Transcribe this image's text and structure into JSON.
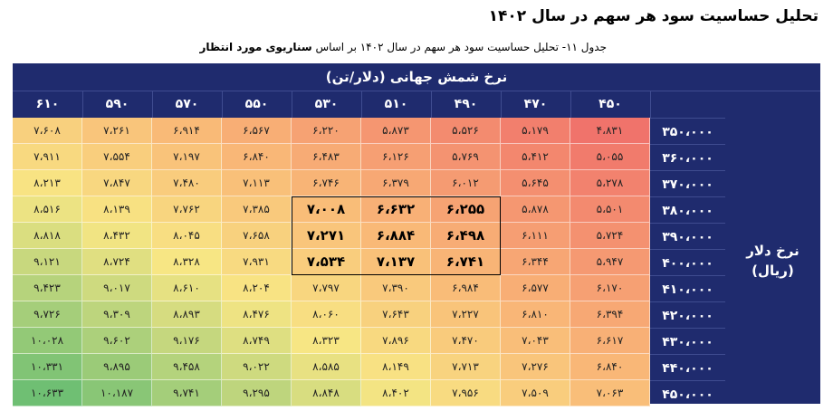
{
  "heading": "تحلیل حساسیت سود هر سهم در سال ۱۴۰۲",
  "caption": {
    "prefix": "جدول ۱۱- تحلیل حساسیت سود هر سهم در سال ۱۴۰۲ بر اساس ",
    "bold": "سناریوی مورد انتظار"
  },
  "table": {
    "top_header": "نرخ شمش جهانی (دلار/تن)",
    "side_label_1": "نرخ دلار",
    "side_label_2": "(ریال)",
    "columns": [
      "۶۱۰",
      "۵۹۰",
      "۵۷۰",
      "۵۵۰",
      "۵۳۰",
      "۵۱۰",
      "۴۹۰",
      "۴۷۰",
      "۴۵۰"
    ],
    "rows": [
      {
        "label": "۳۵۰،۰۰۰",
        "cells": [
          "۷،۶۰۸",
          "۷،۲۶۱",
          "۶،۹۱۴",
          "۶،۵۶۷",
          "۶،۲۲۰",
          "۵،۸۷۳",
          "۵،۵۲۶",
          "۵،۱۷۹",
          "۴،۸۳۱"
        ]
      },
      {
        "label": "۳۶۰،۰۰۰",
        "cells": [
          "۷،۹۱۱",
          "۷،۵۵۴",
          "۷،۱۹۷",
          "۶،۸۴۰",
          "۶،۴۸۳",
          "۶،۱۲۶",
          "۵،۷۶۹",
          "۵،۴۱۲",
          "۵،۰۵۵"
        ]
      },
      {
        "label": "۳۷۰،۰۰۰",
        "cells": [
          "۸،۲۱۳",
          "۷،۸۴۷",
          "۷،۴۸۰",
          "۷،۱۱۳",
          "۶،۷۴۶",
          "۶،۳۷۹",
          "۶،۰۱۲",
          "۵،۶۴۵",
          "۵،۲۷۸"
        ]
      },
      {
        "label": "۳۸۰،۰۰۰",
        "cells": [
          "۸،۵۱۶",
          "۸،۱۳۹",
          "۷،۷۶۲",
          "۷،۳۸۵",
          "۷،۰۰۸",
          "۶،۶۳۲",
          "۶،۲۵۵",
          "۵،۸۷۸",
          "۵،۵۰۱"
        ]
      },
      {
        "label": "۳۹۰،۰۰۰",
        "cells": [
          "۸،۸۱۸",
          "۸،۴۳۲",
          "۸،۰۴۵",
          "۷،۶۵۸",
          "۷،۲۷۱",
          "۶،۸۸۴",
          "۶،۴۹۸",
          "۶،۱۱۱",
          "۵،۷۲۴"
        ]
      },
      {
        "label": "۴۰۰،۰۰۰",
        "cells": [
          "۹،۱۲۱",
          "۸،۷۲۴",
          "۸،۳۲۸",
          "۷،۹۳۱",
          "۷،۵۳۴",
          "۷،۱۳۷",
          "۶،۷۴۱",
          "۶،۳۴۴",
          "۵،۹۴۷"
        ]
      },
      {
        "label": "۴۱۰،۰۰۰",
        "cells": [
          "۹،۴۲۳",
          "۹،۰۱۷",
          "۸،۶۱۰",
          "۸،۲۰۴",
          "۷،۷۹۷",
          "۷،۳۹۰",
          "۶،۹۸۴",
          "۶،۵۷۷",
          "۶،۱۷۰"
        ]
      },
      {
        "label": "۴۲۰،۰۰۰",
        "cells": [
          "۹،۷۲۶",
          "۹،۳۰۹",
          "۸،۸۹۳",
          "۸،۴۷۶",
          "۸،۰۶۰",
          "۷،۶۴۳",
          "۷،۲۲۷",
          "۶،۸۱۰",
          "۶،۳۹۴"
        ]
      },
      {
        "label": "۴۳۰،۰۰۰",
        "cells": [
          "۱۰،۰۲۸",
          "۹،۶۰۲",
          "۹،۱۷۶",
          "۸،۷۴۹",
          "۸،۳۲۳",
          "۷،۸۹۶",
          "۷،۴۷۰",
          "۷،۰۴۳",
          "۶،۶۱۷"
        ]
      },
      {
        "label": "۴۴۰،۰۰۰",
        "cells": [
          "۱۰،۳۳۱",
          "۹،۸۹۵",
          "۹،۴۵۸",
          "۹،۰۲۲",
          "۸،۵۸۵",
          "۸،۱۴۹",
          "۷،۷۱۳",
          "۷،۲۷۶",
          "۶،۸۴۰"
        ]
      },
      {
        "label": "۴۵۰،۰۰۰",
        "cells": [
          "۱۰،۶۳۳",
          "۱۰،۱۸۷",
          "۹،۷۴۱",
          "۹،۲۹۵",
          "۸،۸۴۸",
          "۸،۴۰۲",
          "۷،۹۵۶",
          "۷،۵۰۹",
          "۷،۰۶۳"
        ]
      }
    ],
    "highlight": {
      "rows": [
        3,
        5
      ],
      "cols": [
        4,
        6
      ]
    },
    "colors": {
      "header_bg": "#1f2b6e",
      "grad_red": "#f0736b",
      "grad_orange": "#f9b877",
      "grad_yellow": "#f8e684",
      "grad_green": "#6fbf73"
    }
  }
}
